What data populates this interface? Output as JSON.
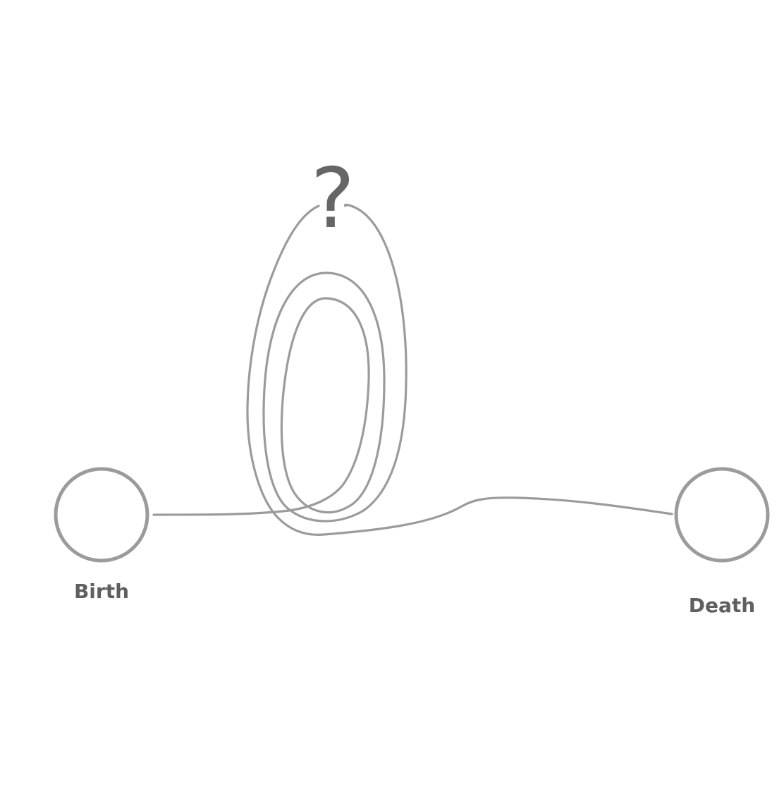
{
  "diagram": {
    "start_label": "Birth",
    "end_label": "Death",
    "question_mark": "?",
    "stroke_color": "#9b9b9b",
    "label_color": "#5f5f5f"
  }
}
